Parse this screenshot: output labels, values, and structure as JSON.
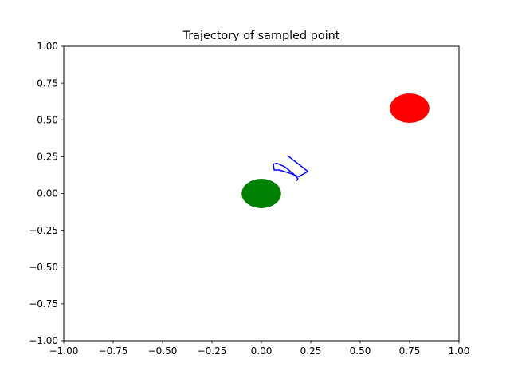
{
  "chart_data": {
    "type": "line",
    "title": "Trajectory of sampled point",
    "xlabel": "",
    "ylabel": "",
    "xlim": [
      -1.0,
      1.0
    ],
    "ylim": [
      -1.0,
      1.0
    ],
    "grid": false,
    "x_ticks": [
      -1.0,
      -0.75,
      -0.5,
      -0.25,
      0.0,
      0.25,
      0.5,
      0.75,
      1.0
    ],
    "x_tick_labels": [
      "−1.00",
      "−0.75",
      "−0.50",
      "−0.25",
      "0.00",
      "0.25",
      "0.50",
      "0.75",
      "1.00"
    ],
    "y_ticks": [
      1.0,
      0.75,
      0.5,
      0.25,
      0.0,
      -0.25,
      -0.5,
      -0.75,
      -1.0
    ],
    "y_tick_labels": [
      "1.00",
      "0.75",
      "0.50",
      "0.25",
      "0.00",
      "−0.25",
      "−0.50",
      "−0.75",
      "−1.00"
    ],
    "circles": [
      {
        "x": 0.0,
        "y": 0.0,
        "radius": 0.1,
        "color": "#008000"
      },
      {
        "x": 0.75,
        "y": 0.58,
        "radius": 0.1,
        "color": "#ff0000"
      }
    ],
    "series": [
      {
        "color": "#0000ff",
        "x": [
          0.135,
          0.235,
          0.19,
          0.14,
          0.09,
          0.065,
          0.06,
          0.08,
          0.12,
          0.165,
          0.185,
          0.18
        ],
        "y": [
          0.255,
          0.15,
          0.115,
          0.14,
          0.16,
          0.16,
          0.2,
          0.205,
          0.18,
          0.13,
          0.1,
          0.09
        ]
      }
    ]
  }
}
